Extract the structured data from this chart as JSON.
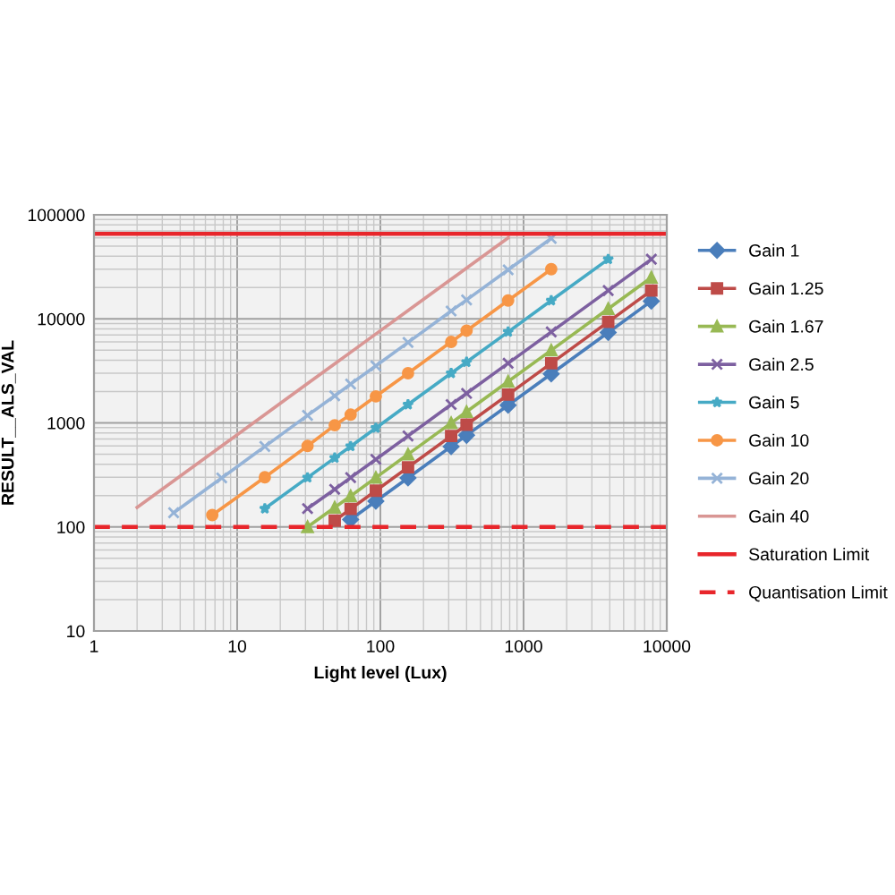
{
  "chart_data": {
    "type": "line",
    "xlabel": "Light level (Lux)",
    "ylabel": "RESULT__ALS_VAL",
    "log": "xy",
    "xlim": [
      1,
      10000
    ],
    "xticks": [
      1,
      10,
      100,
      1000,
      10000
    ],
    "ylim": [
      10,
      100000
    ],
    "yticks": [
      10,
      100,
      1000,
      10000,
      100000
    ],
    "grid": true,
    "legend": "right",
    "line_style": "solid",
    "series": [
      {
        "name": "Gain 1",
        "color": "#4a7ebb",
        "marker": "diamond",
        "x": [
          62,
          93,
          156,
          312,
          400,
          780,
          1560,
          3900,
          7800
        ],
        "values": [
          118,
          177,
          296,
          593,
          760,
          1480,
          2960,
          7400,
          14800
        ]
      },
      {
        "name": "Gain 1.25",
        "color": "#be4b48",
        "marker": "square",
        "x": [
          48,
          62,
          93,
          156,
          312,
          400,
          780,
          1560,
          3900,
          7800
        ],
        "values": [
          115,
          149,
          223,
          374,
          749,
          960,
          1870,
          3740,
          9360,
          18700
        ]
      },
      {
        "name": "Gain 1.67",
        "color": "#98b954",
        "marker": "triangle",
        "x": [
          31,
          48,
          62,
          93,
          156,
          312,
          400,
          780,
          1560,
          3900,
          7800
        ],
        "values": [
          100,
          154,
          198,
          298,
          499,
          998,
          1280,
          2500,
          4990,
          12500,
          25000
        ]
      },
      {
        "name": "Gain 2.5",
        "color": "#7d60a0",
        "marker": "cross",
        "x": [
          31,
          48,
          62,
          93,
          156,
          312,
          400,
          780,
          1560,
          3900,
          7800
        ],
        "values": [
          150,
          230,
          298,
          446,
          749,
          1500,
          1920,
          3740,
          7490,
          18700,
          37400
        ]
      },
      {
        "name": "Gain 5",
        "color": "#46aac5",
        "marker": "star",
        "x": [
          15.6,
          31,
          48,
          62,
          93,
          156,
          312,
          400,
          780,
          1560,
          3900
        ],
        "values": [
          150,
          298,
          461,
          595,
          893,
          1500,
          3000,
          3840,
          7490,
          15000,
          37400
        ]
      },
      {
        "name": "Gain 10",
        "color": "#f79646",
        "marker": "circle",
        "x": [
          6.7,
          15.6,
          31,
          48,
          62,
          93,
          156,
          312,
          400,
          780,
          1560
        ],
        "values": [
          130,
          300,
          600,
          950,
          1200,
          1800,
          3000,
          6000,
          7700,
          15000,
          30000
        ]
      },
      {
        "name": "Gain 20",
        "color": "#95b3d7",
        "marker": "cross",
        "x": [
          3.6,
          7.8,
          15.6,
          31,
          48,
          62,
          93,
          156,
          312,
          400,
          780,
          1560
        ],
        "values": [
          137,
          296,
          593,
          1180,
          1820,
          2360,
          3530,
          5930,
          11900,
          15200,
          29600,
          59300
        ]
      },
      {
        "name": "Gain 40",
        "color": "#d99694",
        "marker": "none",
        "x": [
          2,
          3.9,
          7.8,
          15.6,
          31,
          48,
          62,
          93,
          156,
          312,
          400,
          780
        ],
        "values": [
          154,
          300,
          600,
          1200,
          2390,
          3700,
          4770,
          7160,
          12000,
          24000,
          30800,
          60000
        ]
      }
    ],
    "ref_lines": [
      {
        "axis": "y",
        "value": 65535,
        "label": "Saturation Limit",
        "color": "#e8262b",
        "line_style": "solid"
      },
      {
        "axis": "y",
        "value": 100,
        "label": "Quantisation Limit",
        "color": "#e8262b",
        "line_style": "dashed"
      }
    ]
  }
}
